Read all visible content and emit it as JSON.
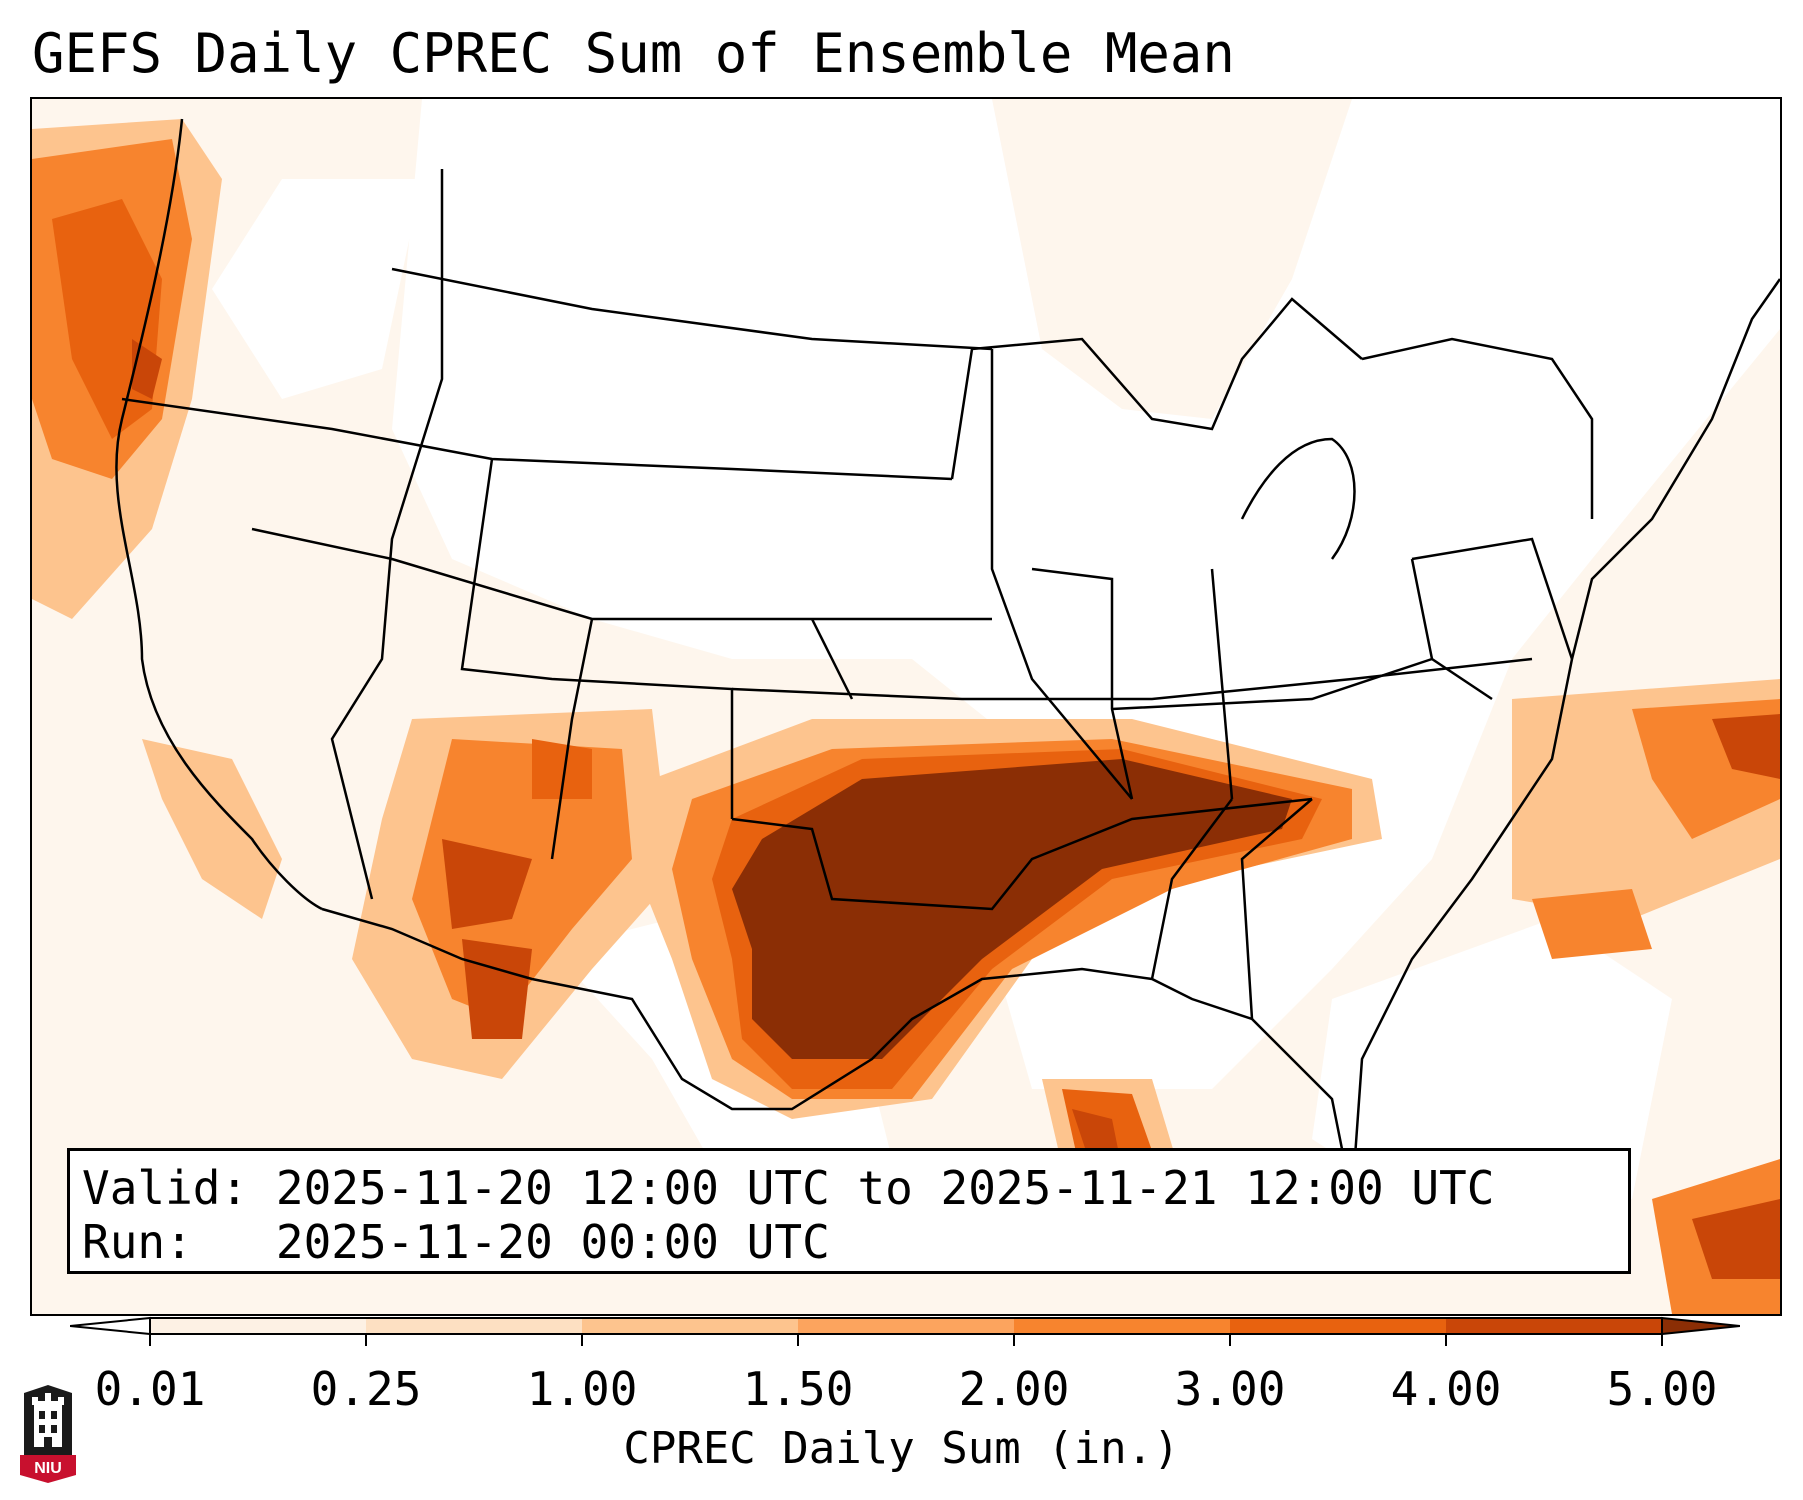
{
  "title": "GEFS Daily CPREC Sum of Ensemble Mean",
  "valid": {
    "valid_label": "Valid:",
    "valid_range": "2025-11-20 12:00 UTC to 2025-11-21 12:00 UTC",
    "run_label": "Run:",
    "run_time": "2025-11-20 00:00 UTC"
  },
  "colorbar": {
    "label": "CPREC Daily Sum (in.)",
    "ticks": [
      "0.01",
      "0.25",
      "1.00",
      "1.50",
      "2.00",
      "3.00",
      "4.00",
      "5.00"
    ],
    "colors": [
      "#fdf1e4",
      "#fde0c2",
      "#fdc48e",
      "#fca45e",
      "#f7842e",
      "#e8620f",
      "#c94608",
      "#8b2e05"
    ]
  },
  "logo": {
    "text": "NIU",
    "colors": {
      "shield": "#1a1a1a",
      "band": "#c8102e"
    }
  },
  "map": {
    "projection": "Lambert Conformal",
    "region": "CONUS",
    "colors": {
      "light": "#fdf1e4",
      "pale": "#fde0c2",
      "tan": "#fdc48e",
      "orange": "#f7842e",
      "dark_orange": "#e8620f",
      "rust": "#c94608",
      "max": "#8b2e05",
      "lines": "#000000"
    }
  }
}
